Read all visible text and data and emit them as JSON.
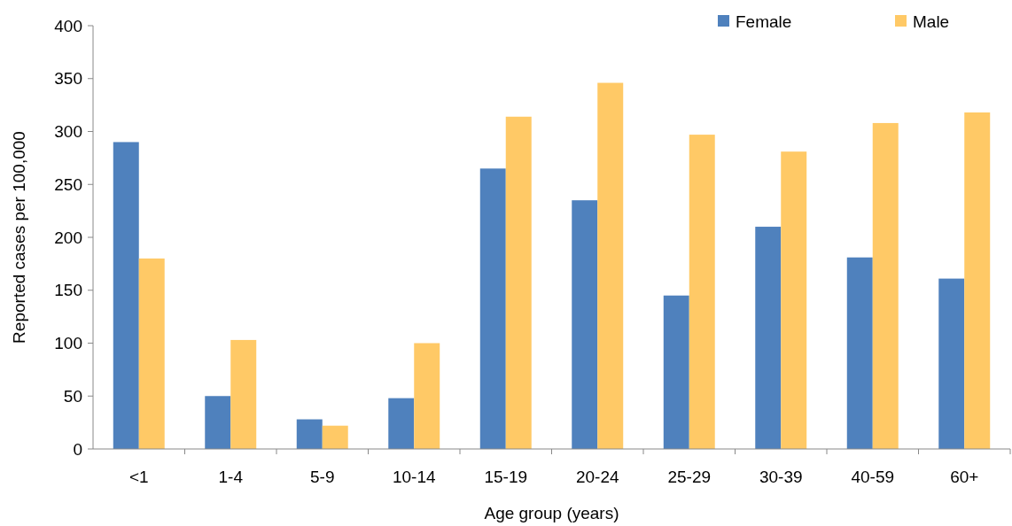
{
  "chart_data": {
    "type": "bar",
    "xlabel": "Age group (years)",
    "ylabel": "Reported cases per 100,000",
    "categories": [
      "<1",
      "1-4",
      "5-9",
      "10-14",
      "15-19",
      "20-24",
      "25-29",
      "30-39",
      "40-59",
      "60+"
    ],
    "series": [
      {
        "name": "Female",
        "color": "#4f81bd",
        "values": [
          290,
          50,
          28,
          48,
          265,
          235,
          145,
          210,
          181,
          161
        ]
      },
      {
        "name": "Male",
        "color": "#ffc966",
        "values": [
          180,
          103,
          22,
          100,
          314,
          346,
          297,
          281,
          308,
          318
        ]
      }
    ],
    "ylim": [
      0,
      400
    ],
    "yticks": [
      0,
      50,
      100,
      150,
      200,
      250,
      300,
      350,
      400
    ],
    "grid": false,
    "legend": "top right"
  }
}
